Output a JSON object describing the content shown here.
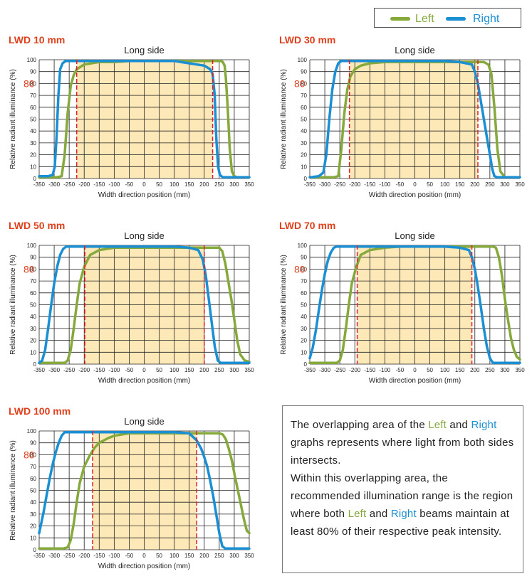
{
  "legend": {
    "left_label": "Left",
    "right_label": "Right"
  },
  "colors": {
    "left": "#86a93c",
    "right": "#1a8fd4",
    "title": "#e0401c",
    "marker80": "#e0401c",
    "fill": "#fde8b8",
    "dash": "#e0202a",
    "grid": "#222222"
  },
  "info": {
    "p1_a": "The overlapping area of the ",
    "p1_left": "Left",
    "p1_b": " and ",
    "p1_right": "Right",
    "p1_c": " graphs represents where light from both sides intersects.",
    "p2_a": "Within this overlapping area, the recommended illumination range is the region where both ",
    "p2_left": "Left",
    "p2_b": " and ",
    "p2_right": "Right",
    "p2_c": " beams maintain at least 80% of their respective peak intensity."
  },
  "chart_data": [
    {
      "type": "line",
      "title": "LWD 10 mm",
      "subtitle": "Long side",
      "xlabel": "Width direction position (mm)",
      "ylabel": "Relative radiant illuminance (%)",
      "xlim": [
        -350,
        350
      ],
      "ylim": [
        0,
        100
      ],
      "xticks": [
        -350,
        -300,
        -250,
        -200,
        -150,
        -100,
        -50,
        0,
        50,
        100,
        150,
        200,
        250,
        300,
        350
      ],
      "yticks": [
        0,
        10,
        20,
        30,
        40,
        50,
        60,
        70,
        80,
        90,
        100
      ],
      "marker_label": "80",
      "range": [
        -225,
        228
      ],
      "grid": true,
      "series": [
        {
          "name": "Left",
          "x": [
            -350,
            -290,
            -275,
            -265,
            -255,
            -245,
            -235,
            -225,
            -200,
            -150,
            -100,
            -50,
            0,
            50,
            100,
            150,
            200,
            240,
            255,
            262,
            268,
            272,
            278,
            285,
            292,
            300,
            310,
            320,
            350
          ],
          "y": [
            1,
            1,
            2,
            20,
            55,
            78,
            87,
            92,
            96,
            98,
            98,
            99,
            99,
            99,
            99,
            99,
            99,
            99,
            99,
            98,
            95,
            85,
            60,
            25,
            6,
            2,
            1,
            1,
            1
          ]
        },
        {
          "name": "Right",
          "x": [
            -350,
            -320,
            -305,
            -298,
            -292,
            -286,
            -280,
            -272,
            -262,
            -250,
            -200,
            -150,
            -100,
            -50,
            0,
            50,
            100,
            150,
            200,
            220,
            228,
            235,
            240,
            246,
            252,
            262,
            275,
            300,
            350
          ],
          "y": [
            2,
            2,
            3,
            10,
            35,
            70,
            92,
            97,
            99,
            99,
            99,
            99,
            99,
            99,
            99,
            99,
            99,
            97,
            95,
            92,
            88,
            70,
            35,
            10,
            3,
            1,
            1,
            1,
            1
          ]
        }
      ]
    },
    {
      "type": "line",
      "title": "LWD 30 mm",
      "subtitle": "Long side",
      "xlabel": "Width direction position (mm)",
      "ylabel": "Relative radiant illuminance (%)",
      "xlim": [
        -350,
        350
      ],
      "ylim": [
        0,
        100
      ],
      "xticks": [
        -350,
        -300,
        -250,
        -200,
        -150,
        -100,
        -50,
        0,
        50,
        100,
        150,
        200,
        250,
        300,
        350
      ],
      "yticks": [
        0,
        10,
        20,
        30,
        40,
        50,
        60,
        70,
        80,
        90,
        100
      ],
      "marker_label": "80",
      "range": [
        -218,
        210
      ],
      "grid": true,
      "series": [
        {
          "name": "Left",
          "x": [
            -350,
            -270,
            -255,
            -245,
            -235,
            -225,
            -215,
            -200,
            -180,
            -150,
            -100,
            -50,
            0,
            50,
            100,
            150,
            200,
            230,
            245,
            255,
            265,
            275,
            285,
            300,
            350
          ],
          "y": [
            1,
            1,
            2,
            25,
            55,
            75,
            86,
            92,
            95,
            97,
            98,
            98,
            98,
            98,
            98,
            98,
            98,
            98,
            96,
            88,
            60,
            25,
            6,
            1,
            1
          ]
        },
        {
          "name": "Right",
          "x": [
            -350,
            -320,
            -305,
            -295,
            -285,
            -275,
            -265,
            -255,
            -245,
            -200,
            -150,
            -100,
            -50,
            0,
            50,
            100,
            150,
            190,
            200,
            210,
            220,
            230,
            240,
            250,
            258,
            265,
            275,
            300,
            350
          ],
          "y": [
            1,
            2,
            5,
            20,
            50,
            75,
            90,
            97,
            99,
            99,
            99,
            99,
            99,
            99,
            99,
            99,
            98,
            96,
            90,
            80,
            65,
            50,
            35,
            20,
            8,
            2,
            1,
            1,
            1
          ]
        }
      ]
    },
    {
      "type": "line",
      "title": "LWD 50 mm",
      "subtitle": "Long side",
      "xlabel": "Width direction position (mm)",
      "ylabel": "Relative radiant illuminance (%)",
      "xlim": [
        -350,
        350
      ],
      "ylim": [
        0,
        100
      ],
      "xticks": [
        -350,
        -300,
        -250,
        -200,
        -150,
        -100,
        -50,
        0,
        50,
        100,
        150,
        200,
        250,
        300,
        350
      ],
      "yticks": [
        0,
        10,
        20,
        30,
        40,
        50,
        60,
        70,
        80,
        90,
        100
      ],
      "marker_label": "80",
      "range": [
        -198,
        200
      ],
      "grid": true,
      "series": [
        {
          "name": "Left",
          "x": [
            -350,
            -265,
            -255,
            -245,
            -235,
            -225,
            -215,
            -200,
            -180,
            -150,
            -100,
            -50,
            0,
            50,
            100,
            150,
            200,
            240,
            250,
            260,
            270,
            280,
            290,
            300,
            310,
            320,
            335,
            350
          ],
          "y": [
            1,
            1,
            3,
            12,
            30,
            50,
            68,
            82,
            92,
            96,
            98,
            98,
            98,
            98,
            98,
            98,
            98,
            98,
            98,
            95,
            85,
            70,
            55,
            38,
            20,
            8,
            3,
            2
          ]
        },
        {
          "name": "Right",
          "x": [
            -350,
            -340,
            -330,
            -320,
            -310,
            -300,
            -290,
            -280,
            -270,
            -260,
            -250,
            -200,
            -150,
            -100,
            -50,
            0,
            50,
            100,
            150,
            180,
            195,
            205,
            215,
            225,
            235,
            245,
            255,
            270,
            300,
            350
          ],
          "y": [
            1,
            3,
            12,
            30,
            50,
            68,
            82,
            92,
            97,
            99,
            99,
            99,
            99,
            99,
            99,
            99,
            99,
            99,
            98,
            96,
            88,
            75,
            55,
            35,
            15,
            3,
            1,
            1,
            1,
            1
          ]
        }
      ]
    },
    {
      "type": "line",
      "title": "LWD 70 mm",
      "subtitle": "Long side",
      "xlabel": "Width direction position (mm)",
      "ylabel": "Relative radiant illuminance (%)",
      "xlim": [
        -350,
        350
      ],
      "ylim": [
        0,
        100
      ],
      "xticks": [
        -350,
        -300,
        -250,
        -200,
        -150,
        -100,
        -50,
        0,
        50,
        100,
        150,
        200,
        250,
        300,
        350
      ],
      "yticks": [
        0,
        10,
        20,
        30,
        40,
        50,
        60,
        70,
        80,
        90,
        100
      ],
      "marker_label": "80",
      "range": [
        -192,
        190
      ],
      "grid": true,
      "series": [
        {
          "name": "Left",
          "x": [
            -350,
            -260,
            -250,
            -240,
            -230,
            -220,
            -210,
            -195,
            -180,
            -150,
            -100,
            -50,
            0,
            50,
            100,
            150,
            200,
            245,
            260,
            270,
            280,
            290,
            300,
            310,
            320,
            330,
            340,
            350
          ],
          "y": [
            1,
            1,
            3,
            12,
            30,
            50,
            68,
            82,
            92,
            96,
            98,
            99,
            99,
            99,
            99,
            99,
            99,
            99,
            99,
            98,
            90,
            75,
            55,
            38,
            22,
            12,
            6,
            4
          ]
        },
        {
          "name": "Right",
          "x": [
            -350,
            -340,
            -330,
            -320,
            -310,
            -300,
            -290,
            -280,
            -270,
            -260,
            -250,
            -200,
            -150,
            -100,
            -50,
            0,
            50,
            100,
            150,
            180,
            190,
            200,
            210,
            220,
            230,
            240,
            250,
            260,
            270,
            300,
            350
          ],
          "y": [
            5,
            14,
            28,
            45,
            62,
            76,
            87,
            94,
            98,
            99,
            99,
            99,
            99,
            99,
            99,
            99,
            99,
            99,
            98,
            96,
            90,
            80,
            65,
            48,
            30,
            15,
            5,
            1,
            1,
            1,
            1
          ]
        }
      ]
    },
    {
      "type": "line",
      "title": "LWD 100 mm",
      "subtitle": "Long side",
      "xlabel": "Width direction position (mm)",
      "ylabel": "Relative radiant illuminance (%)",
      "xlim": [
        -350,
        350
      ],
      "ylim": [
        0,
        100
      ],
      "xticks": [
        -350,
        -300,
        -250,
        -200,
        -150,
        -100,
        -50,
        0,
        50,
        100,
        150,
        200,
        250,
        300,
        350
      ],
      "yticks": [
        0,
        10,
        20,
        30,
        40,
        50,
        60,
        70,
        80,
        90,
        100
      ],
      "marker_label": "80",
      "range": [
        -172,
        175
      ],
      "grid": true,
      "series": [
        {
          "name": "Left",
          "x": [
            -350,
            -270,
            -255,
            -245,
            -235,
            -225,
            -215,
            -200,
            -180,
            -165,
            -150,
            -120,
            -100,
            -50,
            0,
            50,
            100,
            150,
            200,
            250,
            262,
            272,
            282,
            292,
            302,
            312,
            322,
            332,
            342,
            350
          ],
          "y": [
            1,
            1,
            2,
            8,
            22,
            40,
            56,
            70,
            80,
            86,
            90,
            94,
            96,
            98,
            98,
            98,
            98,
            98,
            98,
            98,
            97,
            93,
            85,
            75,
            62,
            50,
            38,
            26,
            16,
            14
          ]
        },
        {
          "name": "Right",
          "x": [
            -350,
            -345,
            -335,
            -325,
            -315,
            -305,
            -295,
            -285,
            -275,
            -265,
            -255,
            -200,
            -150,
            -100,
            -50,
            0,
            50,
            100,
            150,
            175,
            190,
            200,
            210,
            220,
            230,
            240,
            250,
            260,
            270,
            300,
            350
          ],
          "y": [
            14,
            20,
            32,
            46,
            60,
            72,
            82,
            90,
            96,
            99,
            99,
            99,
            99,
            99,
            99,
            99,
            99,
            99,
            98,
            92,
            85,
            78,
            70,
            58,
            45,
            30,
            14,
            3,
            1,
            1,
            1
          ]
        }
      ]
    }
  ]
}
